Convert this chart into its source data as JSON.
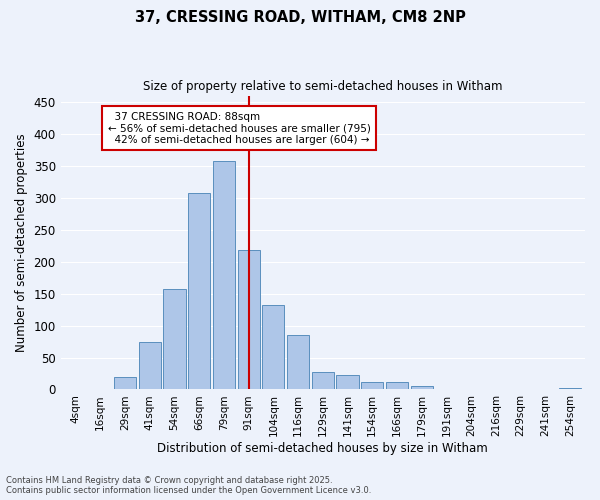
{
  "title": "37, CRESSING ROAD, WITHAM, CM8 2NP",
  "subtitle": "Size of property relative to semi-detached houses in Witham",
  "xlabel": "Distribution of semi-detached houses by size in Witham",
  "ylabel": "Number of semi-detached properties",
  "categories": [
    "4sqm",
    "16sqm",
    "29sqm",
    "41sqm",
    "54sqm",
    "66sqm",
    "79sqm",
    "91sqm",
    "104sqm",
    "116sqm",
    "129sqm",
    "141sqm",
    "154sqm",
    "166sqm",
    "179sqm",
    "191sqm",
    "204sqm",
    "216sqm",
    "229sqm",
    "241sqm",
    "254sqm"
  ],
  "values": [
    0,
    0,
    20,
    75,
    157,
    308,
    358,
    218,
    132,
    85,
    27,
    22,
    12,
    12,
    6,
    0,
    0,
    0,
    0,
    0,
    3
  ],
  "bar_color": "#aec6e8",
  "bar_edge_color": "#5a8fbe",
  "property_label": "37 CRESSING ROAD: 88sqm",
  "pct_smaller": 56,
  "pct_smaller_count": 795,
  "pct_larger": 42,
  "pct_larger_count": 604,
  "vline_x_index": 7,
  "vline_color": "#cc0000",
  "annotation_box_color": "#cc0000",
  "ylim": [
    0,
    460
  ],
  "yticks": [
    0,
    50,
    100,
    150,
    200,
    250,
    300,
    350,
    400,
    450
  ],
  "background_color": "#edf2fb",
  "grid_color": "#ffffff",
  "footer_line1": "Contains HM Land Registry data © Crown copyright and database right 2025.",
  "footer_line2": "Contains public sector information licensed under the Open Government Licence v3.0."
}
